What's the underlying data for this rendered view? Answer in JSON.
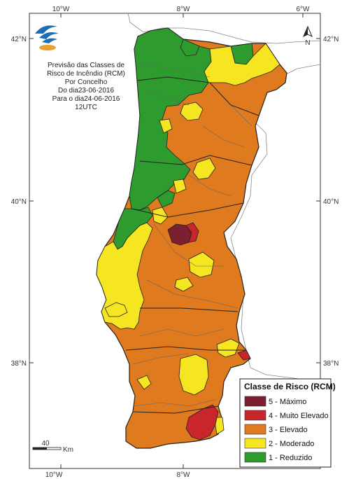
{
  "map": {
    "title_lines": [
      "Previsão das Classes de",
      "Risco de Incêndio (RCM)",
      "Por Concelho",
      "Do dia23-06-2016",
      "Para o dia24-06-2016",
      "12UTC"
    ],
    "ticks": {
      "top": [
        "10°W",
        "8°W",
        "6°W"
      ],
      "bottom": [
        "10°W",
        "8°W"
      ],
      "left": [
        "42°N",
        "40°N",
        "38°N"
      ],
      "right": [
        "42°N",
        "40°N",
        "38°N"
      ]
    },
    "north_label": "N",
    "scale": {
      "value": "40",
      "unit": "Km"
    }
  },
  "legend": {
    "title": "Classe de Risco (RCM)",
    "items": [
      {
        "label": "5 - Máximo",
        "color": "#7a2030"
      },
      {
        "label": "4 - Muito Elevado",
        "color": "#c8262b"
      },
      {
        "label": "3 - Elevado",
        "color": "#e07a1e"
      },
      {
        "label": "2 - Moderado",
        "color": "#f6e622"
      },
      {
        "label": "1 - Reduzido",
        "color": "#2e9b2e"
      }
    ]
  },
  "colors": {
    "max": "#7a2030",
    "very_high": "#c8262b",
    "high": "#e07a1e",
    "moderate": "#f6e622",
    "low": "#2e9b2e",
    "border": "#555555",
    "district": "#222222"
  },
  "icons": [
    "logo-icon",
    "north-arrow-icon"
  ]
}
